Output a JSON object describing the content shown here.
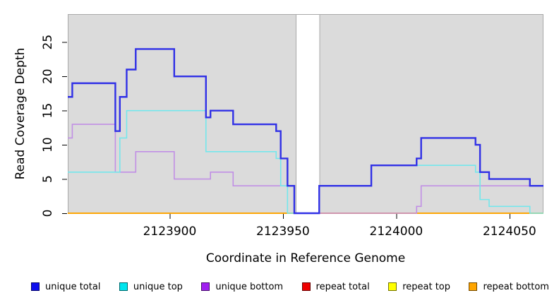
{
  "chart_data": {
    "type": "line",
    "subtype": "step-coverage",
    "title": "",
    "xlabel": "Coordinate in Reference Genome",
    "ylabel": "Read Coverage Depth",
    "xlim": [
      2123855,
      2124065
    ],
    "ylim": [
      0,
      29.1
    ],
    "xticks": [
      2123900,
      2123950,
      2124000,
      2124050
    ],
    "yticks": [
      0,
      5,
      10,
      15,
      20,
      25
    ],
    "grid": false,
    "legend_position": "bottom",
    "panel_fill": "#DBDBDB",
    "panel_border": "#A9A9A9",
    "gap_region": [
      2123956,
      2123966
    ],
    "panel_regions": [
      [
        2123855,
        2123956
      ],
      [
        2123966,
        2124065
      ]
    ],
    "series": [
      {
        "name": "unique total",
        "color": "#3030E6",
        "legend_color": "#0D0DEE",
        "width": 2.4,
        "steps": [
          [
            2123855,
            17
          ],
          [
            2123857,
            19
          ],
          [
            2123876,
            12
          ],
          [
            2123878,
            17
          ],
          [
            2123881,
            21
          ],
          [
            2123885,
            24
          ],
          [
            2123902,
            20
          ],
          [
            2123916,
            14
          ],
          [
            2123918,
            15
          ],
          [
            2123928,
            13
          ],
          [
            2123947,
            12
          ],
          [
            2123949,
            8
          ],
          [
            2123952,
            4
          ],
          [
            2123955,
            0
          ],
          [
            2123966,
            4
          ],
          [
            2123989,
            7
          ],
          [
            2124009,
            8
          ],
          [
            2124011,
            11
          ],
          [
            2124035,
            10
          ],
          [
            2124037,
            6
          ],
          [
            2124041,
            5
          ],
          [
            2124059,
            4
          ]
        ]
      },
      {
        "name": "unique top",
        "color": "#74E7EC",
        "legend_color": "#00E5EE",
        "width": 1.6,
        "steps": [
          [
            2123855,
            6
          ],
          [
            2123878,
            11
          ],
          [
            2123881,
            15
          ],
          [
            2123916,
            9
          ],
          [
            2123947,
            8
          ],
          [
            2123949,
            4
          ],
          [
            2123952,
            0
          ],
          [
            2123966,
            4
          ],
          [
            2123989,
            7
          ],
          [
            2124035,
            6
          ],
          [
            2124037,
            2
          ],
          [
            2124041,
            1
          ],
          [
            2124059,
            0
          ]
        ]
      },
      {
        "name": "unique bottom",
        "color": "#C18FE5",
        "legend_color": "#A020F0",
        "width": 1.6,
        "steps": [
          [
            2123855,
            11
          ],
          [
            2123857,
            13
          ],
          [
            2123876,
            6
          ],
          [
            2123885,
            9
          ],
          [
            2123902,
            5
          ],
          [
            2123918,
            6
          ],
          [
            2123928,
            4
          ],
          [
            2123955,
            0
          ],
          [
            2124009,
            1
          ],
          [
            2124011,
            4
          ]
        ]
      },
      {
        "name": "repeat total",
        "color": "#E00000",
        "legend_color": "#EE0000",
        "width": 1.6,
        "steps": [
          [
            2123855,
            0
          ]
        ]
      },
      {
        "name": "repeat top",
        "color": "#FFFF00",
        "legend_color": "#FFFF00",
        "width": 1.6,
        "steps": [
          [
            2123855,
            0
          ]
        ]
      },
      {
        "name": "repeat bottom",
        "color": "#FFA500",
        "legend_color": "#FFA500",
        "width": 1.8,
        "steps": [
          [
            2123855,
            0
          ]
        ]
      }
    ],
    "draw_order": [
      3,
      4,
      5,
      2,
      1,
      0
    ]
  }
}
